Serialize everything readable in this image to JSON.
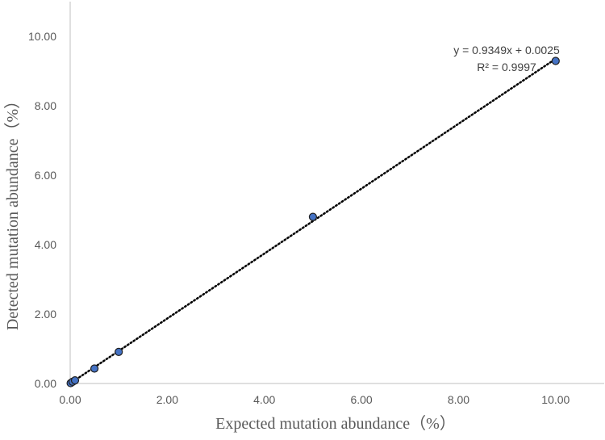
{
  "chart_data": {
    "type": "scatter",
    "title": "",
    "xlabel": "Expected mutation abundance（%）",
    "ylabel": "Detected mutation abundance（%）",
    "xlim": [
      0,
      11
    ],
    "ylim": [
      0,
      11
    ],
    "x_ticks": [
      "0.00",
      "2.00",
      "4.00",
      "6.00",
      "8.00",
      "10.00"
    ],
    "y_ticks": [
      "0.00",
      "2.00",
      "4.00",
      "6.00",
      "8.00",
      "10.00"
    ],
    "x_tick_values": [
      0,
      2,
      4,
      6,
      8,
      10
    ],
    "y_tick_values": [
      0,
      2,
      4,
      6,
      8,
      10
    ],
    "grid": false,
    "legend": "none",
    "series": [
      {
        "x": [
          0.01,
          0.05,
          0.1,
          0.5,
          1.0,
          5.0,
          10.0
        ],
        "y": [
          0.01,
          0.05,
          0.09,
          0.43,
          0.91,
          4.8,
          9.29
        ],
        "marker_color": "#4472c4",
        "marker_edge": "#1f1f1f"
      }
    ],
    "trendline": {
      "type": "linear",
      "slope": 0.9349,
      "intercept": 0.0025,
      "x_range": [
        0,
        10
      ],
      "style": "dotted",
      "color": "#000000"
    },
    "annotations": {
      "equation": "y = 0.9349x + 0.0025",
      "r_squared": "R² = 0.9997"
    },
    "colors": {
      "axis": "#bfbfbf",
      "text": "#595959"
    }
  }
}
